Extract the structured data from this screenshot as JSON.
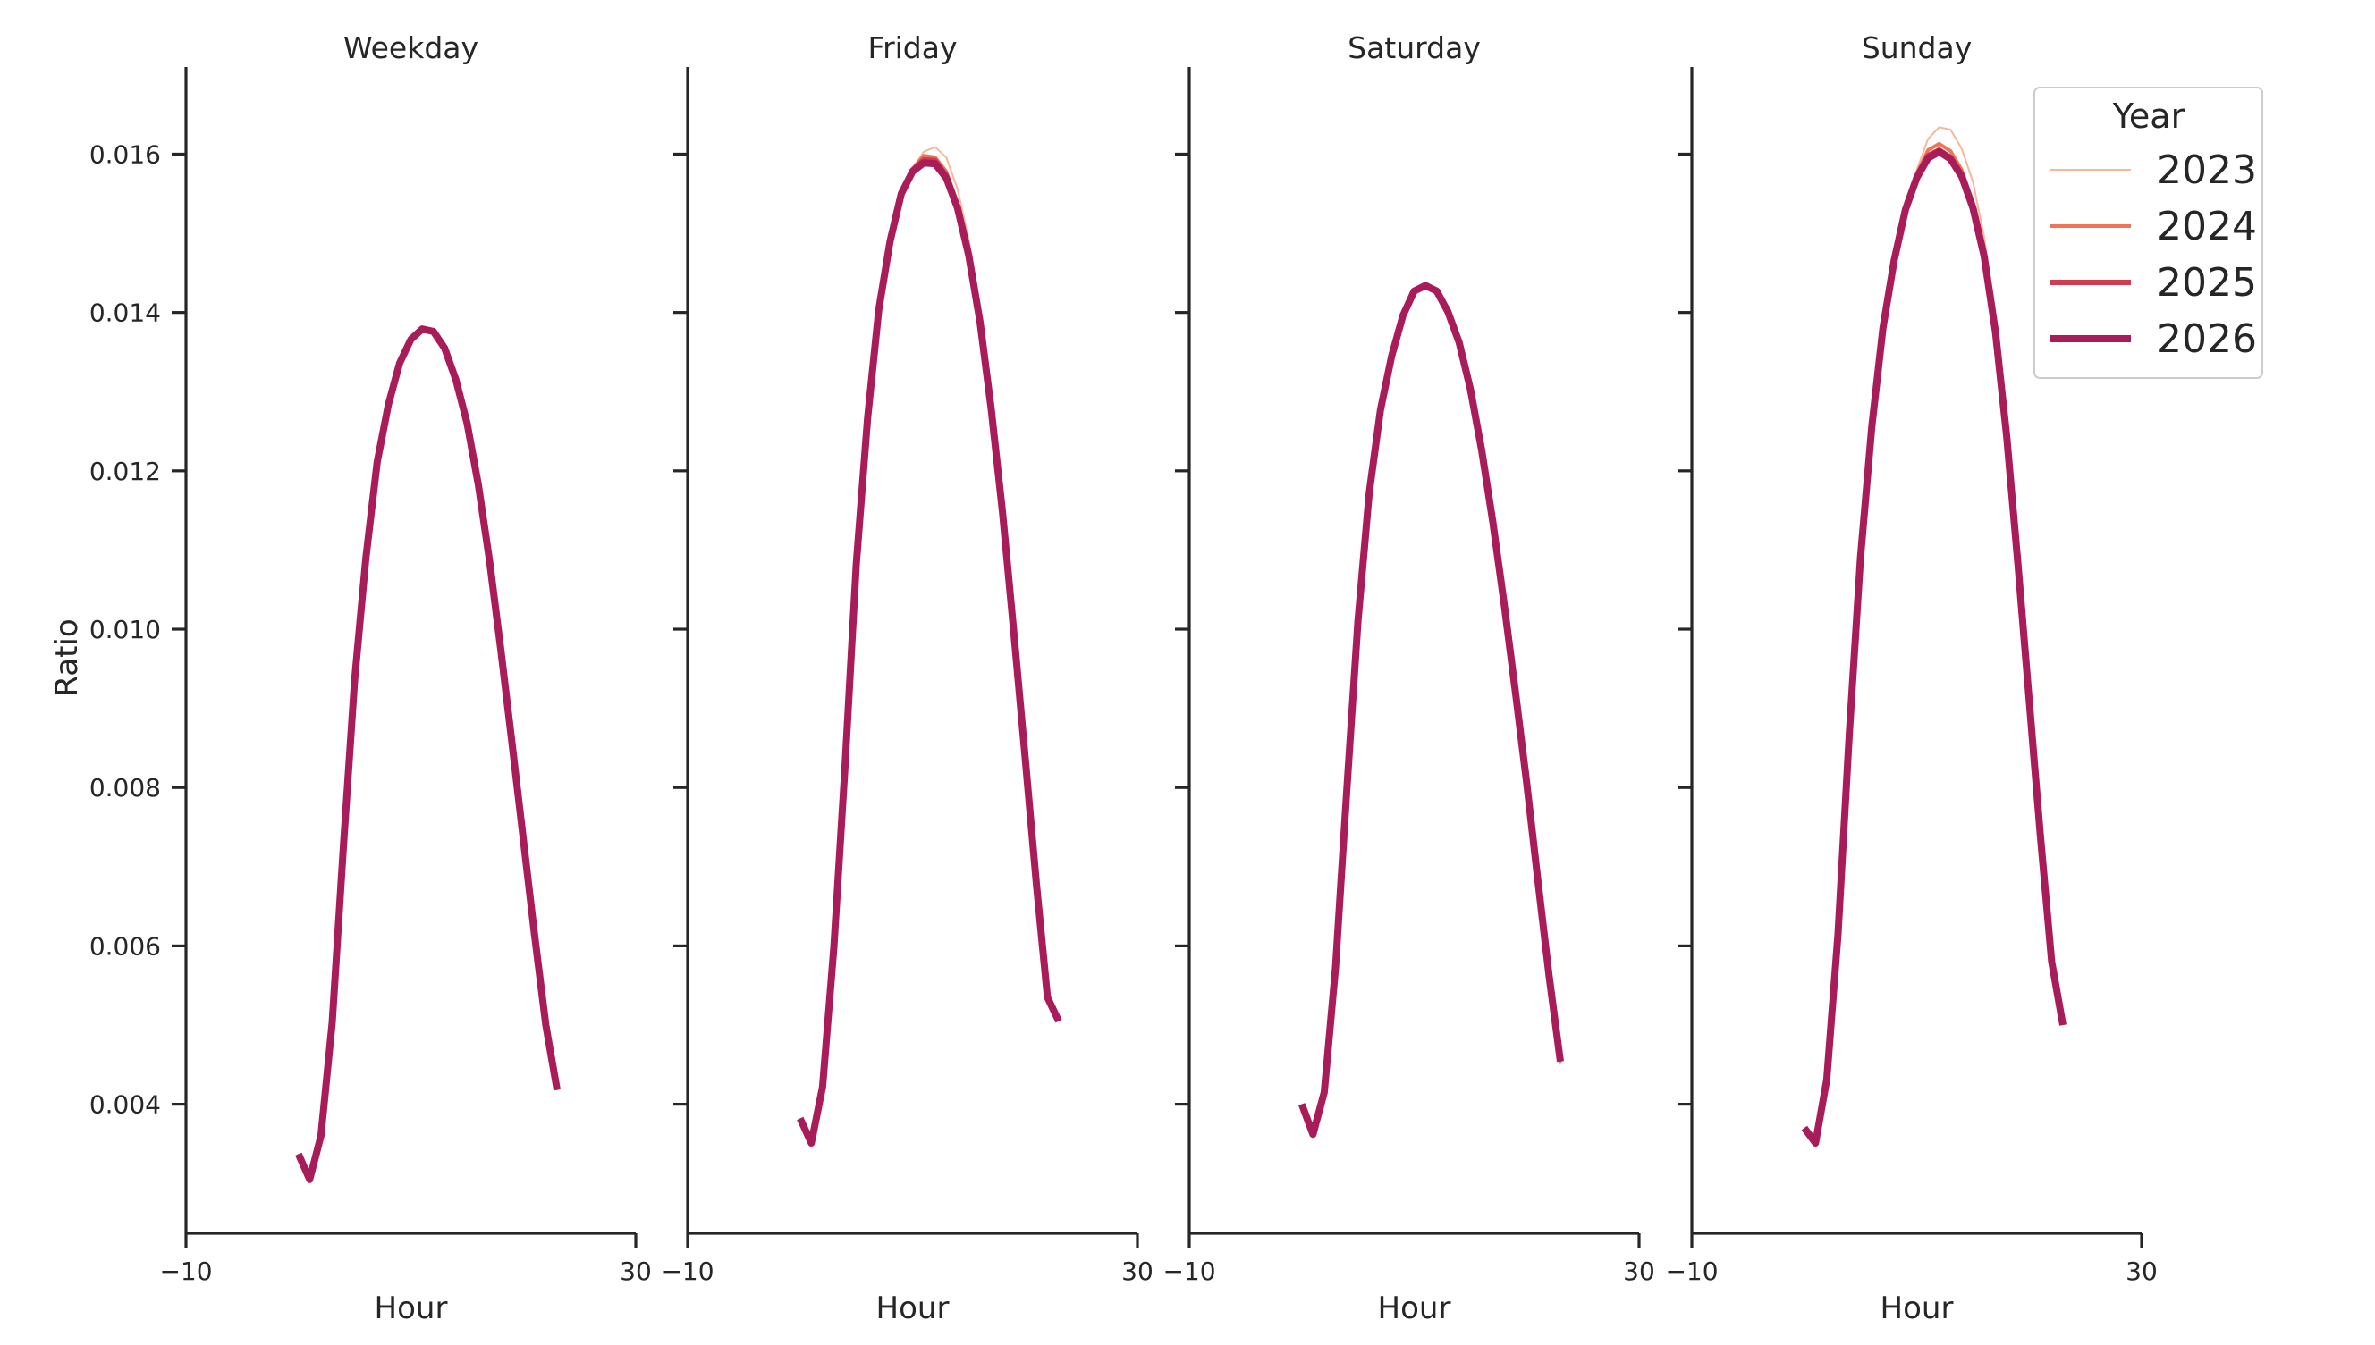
{
  "chart_data": {
    "type": "line",
    "ylabel": "Ratio",
    "xlabel": "Hour",
    "xlim": [
      -10,
      30
    ],
    "ylim": [
      0.00237,
      0.0171
    ],
    "x_ticks": [
      "−10",
      "30"
    ],
    "y_ticks": [
      "0.004",
      "0.006",
      "0.008",
      "0.010",
      "0.012",
      "0.014",
      "0.016"
    ],
    "legend": {
      "title": "Year",
      "placement": "top-right",
      "entries": [
        "2023",
        "2024",
        "2025",
        "2026"
      ]
    },
    "series_style": [
      {
        "name": "2023",
        "color": "#f5b89a",
        "width": 2
      },
      {
        "name": "2024",
        "color": "#ef7654",
        "width": 4
      },
      {
        "name": "2025",
        "color": "#d33b50",
        "width": 6
      },
      {
        "name": "2026",
        "color": "#a81c5a",
        "width": 8
      }
    ],
    "x": [
      0,
      1,
      2,
      3,
      4,
      5,
      6,
      7,
      8,
      9,
      10,
      11,
      12,
      13,
      14,
      15,
      16,
      17,
      18,
      19,
      20,
      21,
      22,
      23
    ],
    "panels": [
      {
        "title": "Weekday",
        "series": [
          {
            "name": "2023",
            "values": [
              0.00337,
              0.00305,
              0.0036,
              0.00503,
              0.00725,
              0.00936,
              0.0109,
              0.01211,
              0.01284,
              0.01336,
              0.01366,
              0.01379,
              0.01376,
              0.01355,
              0.01315,
              0.0126,
              0.01182,
              0.01086,
              0.00974,
              0.00855,
              0.00734,
              0.00614,
              0.005,
              0.00418
            ]
          },
          {
            "name": "2024",
            "values": [
              0.00337,
              0.00305,
              0.0036,
              0.00503,
              0.00725,
              0.00936,
              0.0109,
              0.01211,
              0.01284,
              0.01336,
              0.01366,
              0.01379,
              0.01376,
              0.01355,
              0.01315,
              0.0126,
              0.01182,
              0.01086,
              0.00974,
              0.00855,
              0.00734,
              0.00614,
              0.005,
              0.00418
            ]
          },
          {
            "name": "2025",
            "values": [
              0.00337,
              0.00305,
              0.0036,
              0.00503,
              0.00725,
              0.00936,
              0.0109,
              0.01211,
              0.01284,
              0.01336,
              0.01366,
              0.01379,
              0.01376,
              0.01355,
              0.01315,
              0.0126,
              0.01182,
              0.01086,
              0.00974,
              0.00855,
              0.00734,
              0.00614,
              0.005,
              0.00418
            ]
          },
          {
            "name": "2026",
            "values": [
              0.00337,
              0.00305,
              0.0036,
              0.00503,
              0.00725,
              0.00936,
              0.0109,
              0.01211,
              0.01284,
              0.01336,
              0.01366,
              0.01379,
              0.01376,
              0.01355,
              0.01315,
              0.0126,
              0.01182,
              0.01086,
              0.00974,
              0.00855,
              0.00734,
              0.00614,
              0.005,
              0.00418
            ]
          }
        ]
      },
      {
        "title": "Friday",
        "series": [
          {
            "name": "2023",
            "values": [
              0.00382,
              0.00351,
              0.00422,
              0.00598,
              0.00827,
              0.01082,
              0.01266,
              0.01404,
              0.0149,
              0.0155,
              0.01582,
              0.01603,
              0.01609,
              0.01596,
              0.01556,
              0.01492,
              0.01401,
              0.01284,
              0.01148,
              0.00997,
              0.0084,
              0.00681,
              0.00535,
              0.00505
            ]
          },
          {
            "name": "2024",
            "values": [
              0.00382,
              0.00351,
              0.00422,
              0.00598,
              0.00827,
              0.01082,
              0.01266,
              0.01404,
              0.0149,
              0.0155,
              0.01581,
              0.01598,
              0.01596,
              0.01578,
              0.01538,
              0.01477,
              0.01391,
              0.0128,
              0.01148,
              0.00997,
              0.0084,
              0.00681,
              0.00535,
              0.00505
            ]
          },
          {
            "name": "2025",
            "values": [
              0.00382,
              0.00351,
              0.00422,
              0.00598,
              0.00827,
              0.01082,
              0.01266,
              0.01404,
              0.0149,
              0.0155,
              0.0158,
              0.01593,
              0.01592,
              0.01573,
              0.01534,
              0.01474,
              0.01389,
              0.01279,
              0.01148,
              0.00997,
              0.0084,
              0.00681,
              0.00535,
              0.00505
            ]
          },
          {
            "name": "2026",
            "values": [
              0.00382,
              0.00351,
              0.00422,
              0.00598,
              0.00827,
              0.01082,
              0.01266,
              0.01404,
              0.0149,
              0.0155,
              0.01578,
              0.01589,
              0.01588,
              0.0157,
              0.01532,
              0.01472,
              0.01388,
              0.01278,
              0.01148,
              0.00997,
              0.0084,
              0.00681,
              0.00535,
              0.00505
            ]
          }
        ]
      },
      {
        "title": "Saturday",
        "series": [
          {
            "name": "2023",
            "values": [
              0.004,
              0.00362,
              0.00415,
              0.00572,
              0.00794,
              0.0101,
              0.01172,
              0.01277,
              0.01345,
              0.01396,
              0.01427,
              0.01436,
              0.01429,
              0.01403,
              0.01363,
              0.01303,
              0.01226,
              0.01135,
              0.01032,
              0.00921,
              0.00806,
              0.00683,
              0.00562,
              0.0045
            ]
          },
          {
            "name": "2024",
            "values": [
              0.004,
              0.00362,
              0.00415,
              0.00572,
              0.00794,
              0.0101,
              0.01172,
              0.01277,
              0.01345,
              0.01396,
              0.01427,
              0.01435,
              0.01427,
              0.01401,
              0.01362,
              0.01303,
              0.01226,
              0.01135,
              0.01032,
              0.00921,
              0.00806,
              0.00683,
              0.00562,
              0.00453
            ]
          },
          {
            "name": "2025",
            "values": [
              0.004,
              0.00362,
              0.00415,
              0.00572,
              0.00794,
              0.0101,
              0.01172,
              0.01277,
              0.01345,
              0.01396,
              0.01427,
              0.01434,
              0.01427,
              0.01401,
              0.01362,
              0.01303,
              0.01226,
              0.01135,
              0.01032,
              0.00921,
              0.00806,
              0.00683,
              0.00562,
              0.00454
            ]
          },
          {
            "name": "2026",
            "values": [
              0.004,
              0.00362,
              0.00415,
              0.00572,
              0.00794,
              0.0101,
              0.01172,
              0.01277,
              0.01345,
              0.01396,
              0.01427,
              0.01434,
              0.01427,
              0.01401,
              0.01362,
              0.01303,
              0.01226,
              0.01135,
              0.01032,
              0.00921,
              0.00806,
              0.00683,
              0.00562,
              0.00454
            ]
          }
        ]
      },
      {
        "title": "Sunday",
        "series": [
          {
            "name": "2023",
            "values": [
              0.0037,
              0.00351,
              0.00431,
              0.00615,
              0.00868,
              0.0109,
              0.01255,
              0.01381,
              0.01466,
              0.0153,
              0.0158,
              0.01619,
              0.01634,
              0.01631,
              0.01607,
              0.01565,
              0.01496,
              0.01383,
              0.01244,
              0.01082,
              0.0091,
              0.00739,
              0.0058,
              0.005
            ]
          },
          {
            "name": "2024",
            "values": [
              0.0037,
              0.00351,
              0.00431,
              0.00615,
              0.00868,
              0.0109,
              0.01255,
              0.01381,
              0.01466,
              0.0153,
              0.01575,
              0.01605,
              0.01613,
              0.01604,
              0.0158,
              0.01539,
              0.01476,
              0.01377,
              0.01244,
              0.01082,
              0.0091,
              0.00739,
              0.0058,
              0.005
            ]
          },
          {
            "name": "2025",
            "values": [
              0.0037,
              0.00351,
              0.00431,
              0.00615,
              0.00868,
              0.0109,
              0.01255,
              0.01381,
              0.01466,
              0.0153,
              0.01572,
              0.01598,
              0.01605,
              0.01596,
              0.01573,
              0.01533,
              0.01472,
              0.01376,
              0.01244,
              0.01082,
              0.0091,
              0.00739,
              0.0058,
              0.005
            ]
          },
          {
            "name": "2026",
            "values": [
              0.0037,
              0.00351,
              0.00431,
              0.00615,
              0.00868,
              0.0109,
              0.01255,
              0.01381,
              0.01466,
              0.0153,
              0.0157,
              0.01595,
              0.01603,
              0.01594,
              0.01572,
              0.01532,
              0.01471,
              0.01376,
              0.01244,
              0.01082,
              0.0091,
              0.00739,
              0.0058,
              0.005
            ]
          }
        ]
      }
    ]
  }
}
